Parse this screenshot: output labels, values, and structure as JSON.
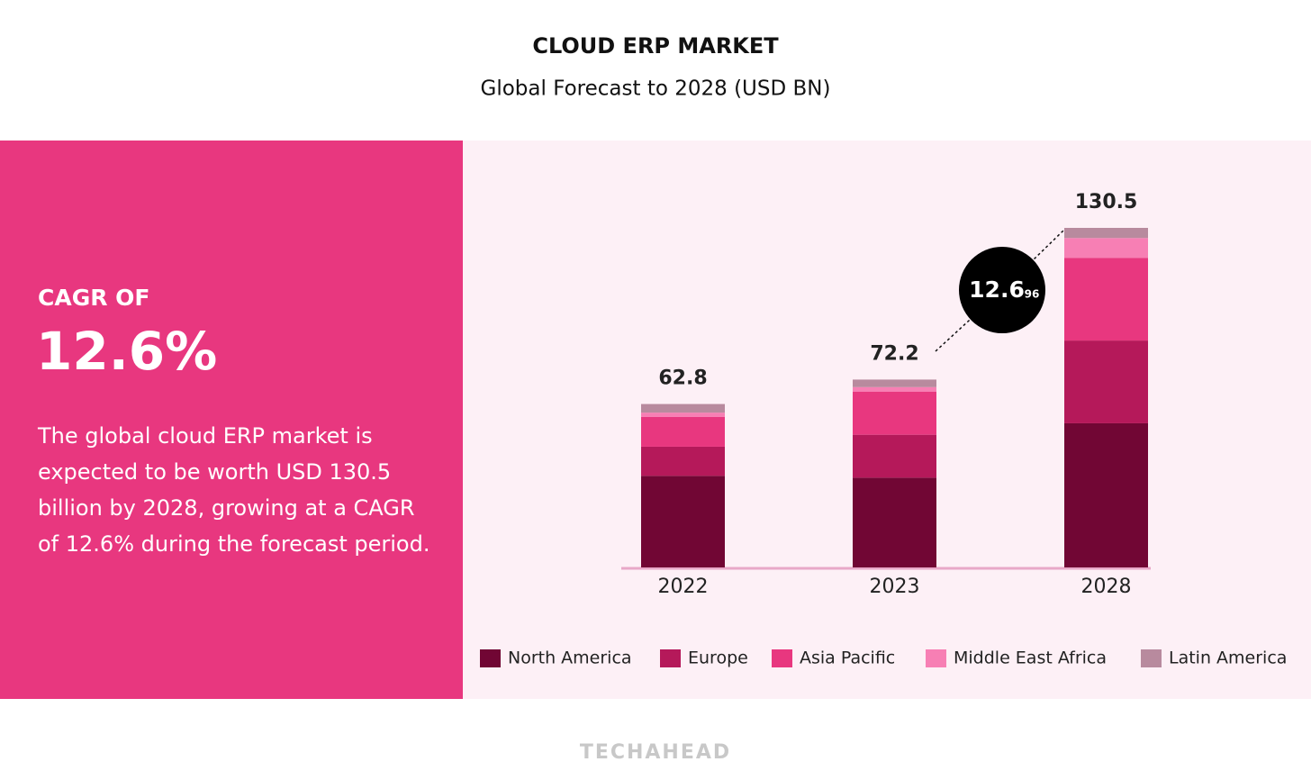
{
  "chart_data": {
    "type": "bar",
    "stacked": true,
    "title": "CLOUD ERP MARKET",
    "subtitle": "Global Forecast to 2028 (USD BN)",
    "categories": [
      "2022",
      "2023",
      "2028"
    ],
    "series": [
      {
        "name": "North America",
        "color": "#710634",
        "values": [
          35.2,
          34.5,
          55.4
        ]
      },
      {
        "name": "Europe",
        "color": "#b5195a",
        "values": [
          11.2,
          16.5,
          31.8
        ]
      },
      {
        "name": "Asia Pacific",
        "color": "#e8377f",
        "values": [
          11.5,
          16.5,
          31.8
        ]
      },
      {
        "name": "Middle East Africa",
        "color": "#f77fb4",
        "values": [
          1.6,
          1.8,
          7.6
        ]
      },
      {
        "name": "Latin America",
        "color": "#b88a9e",
        "values": [
          3.3,
          2.9,
          3.9
        ]
      }
    ],
    "totals": [
      62.8,
      72.2,
      130.5
    ],
    "annotation": {
      "value": "12.6",
      "unit": "96"
    }
  },
  "panel": {
    "heading": "CAGR OF",
    "big": "12.6%",
    "lines": [
      "The global cloud ERP market is",
      "expected to be worth USD 130.5",
      "billion by 2028, growing at a CAGR",
      "of 12.6% during the forecast period."
    ]
  },
  "footer": "TECHAHEAD"
}
